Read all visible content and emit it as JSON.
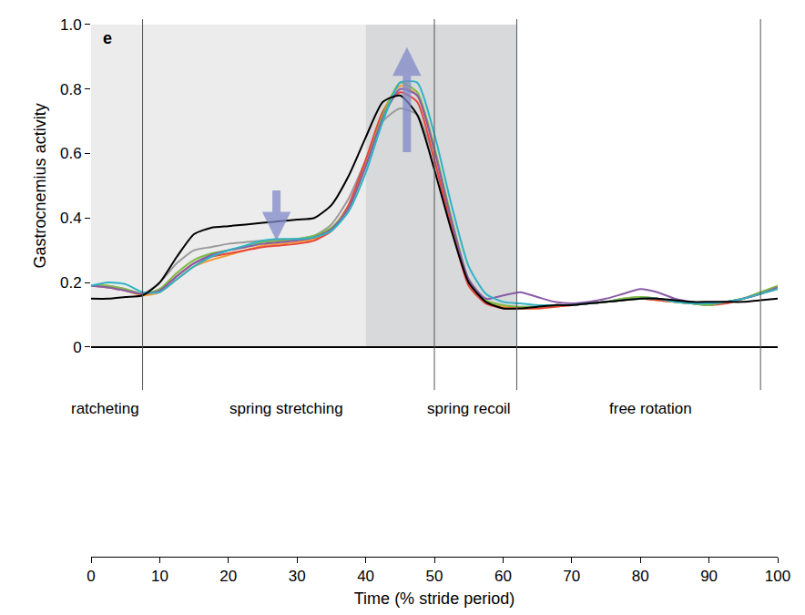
{
  "chart_data": {
    "type": "line",
    "panel_label": "e",
    "xlabel": "Time (% stride period)",
    "ylabel": "Gastrocnemius activity",
    "x": [
      0,
      2.5,
      5,
      7.5,
      10,
      12.5,
      15,
      17.5,
      20,
      22.5,
      25,
      27.5,
      30,
      32.5,
      35,
      37.5,
      40,
      42.5,
      45,
      47.5,
      50,
      52.5,
      55,
      57.5,
      60,
      62.5,
      65,
      67.5,
      70,
      72.5,
      75,
      77.5,
      80,
      82.5,
      85,
      87.5,
      90,
      92.5,
      95,
      97.5,
      100
    ],
    "series": [
      {
        "color": "#9a9a9a",
        "values": [
          0.19,
          0.19,
          0.18,
          0.165,
          0.2,
          0.26,
          0.3,
          0.31,
          0.32,
          0.325,
          0.33,
          0.33,
          0.335,
          0.345,
          0.38,
          0.46,
          0.58,
          0.7,
          0.74,
          0.72,
          0.58,
          0.37,
          0.2,
          0.14,
          0.125,
          0.125,
          0.125,
          0.13,
          0.13,
          0.135,
          0.14,
          0.15,
          0.155,
          0.15,
          0.14,
          0.135,
          0.13,
          0.14,
          0.15,
          0.17,
          0.185
        ]
      },
      {
        "color": "#f39c35",
        "values": [
          0.19,
          0.19,
          0.175,
          0.16,
          0.17,
          0.21,
          0.25,
          0.27,
          0.285,
          0.3,
          0.315,
          0.32,
          0.325,
          0.335,
          0.365,
          0.44,
          0.57,
          0.73,
          0.81,
          0.78,
          0.61,
          0.39,
          0.2,
          0.14,
          0.125,
          0.12,
          0.12,
          0.125,
          0.13,
          0.135,
          0.14,
          0.145,
          0.15,
          0.145,
          0.14,
          0.135,
          0.135,
          0.14,
          0.15,
          0.165,
          0.18
        ]
      },
      {
        "color": "#e8463a",
        "values": [
          0.19,
          0.185,
          0.175,
          0.165,
          0.175,
          0.22,
          0.26,
          0.28,
          0.29,
          0.3,
          0.31,
          0.315,
          0.32,
          0.33,
          0.36,
          0.44,
          0.58,
          0.73,
          0.79,
          0.76,
          0.58,
          0.37,
          0.19,
          0.135,
          0.12,
          0.12,
          0.12,
          0.125,
          0.13,
          0.135,
          0.14,
          0.145,
          0.15,
          0.145,
          0.14,
          0.135,
          0.13,
          0.135,
          0.15,
          0.165,
          0.185
        ]
      },
      {
        "color": "#7dbb42",
        "values": [
          0.19,
          0.19,
          0.18,
          0.165,
          0.18,
          0.23,
          0.27,
          0.29,
          0.3,
          0.31,
          0.325,
          0.33,
          0.335,
          0.345,
          0.37,
          0.43,
          0.56,
          0.72,
          0.82,
          0.79,
          0.62,
          0.4,
          0.21,
          0.145,
          0.13,
          0.125,
          0.125,
          0.13,
          0.13,
          0.135,
          0.14,
          0.15,
          0.155,
          0.15,
          0.14,
          0.135,
          0.13,
          0.14,
          0.15,
          0.17,
          0.19
        ]
      },
      {
        "color": "#8a5ca8",
        "values": [
          0.19,
          0.185,
          0.175,
          0.165,
          0.175,
          0.22,
          0.26,
          0.285,
          0.3,
          0.31,
          0.32,
          0.325,
          0.33,
          0.34,
          0.365,
          0.43,
          0.56,
          0.71,
          0.8,
          0.78,
          0.61,
          0.39,
          0.21,
          0.15,
          0.16,
          0.17,
          0.155,
          0.14,
          0.135,
          0.14,
          0.15,
          0.165,
          0.18,
          0.17,
          0.15,
          0.14,
          0.135,
          0.14,
          0.15,
          0.165,
          0.185
        ]
      },
      {
        "color": "#2fb3c6",
        "values": [
          0.19,
          0.2,
          0.195,
          0.17,
          0.17,
          0.21,
          0.25,
          0.28,
          0.3,
          0.315,
          0.33,
          0.335,
          0.335,
          0.34,
          0.36,
          0.42,
          0.54,
          0.7,
          0.82,
          0.82,
          0.66,
          0.44,
          0.25,
          0.165,
          0.14,
          0.135,
          0.13,
          0.13,
          0.13,
          0.135,
          0.14,
          0.145,
          0.15,
          0.15,
          0.14,
          0.135,
          0.135,
          0.14,
          0.15,
          0.165,
          0.18
        ]
      },
      {
        "color": "#000000",
        "values": [
          0.15,
          0.15,
          0.155,
          0.16,
          0.2,
          0.28,
          0.35,
          0.37,
          0.375,
          0.38,
          0.385,
          0.39,
          0.395,
          0.4,
          0.44,
          0.53,
          0.65,
          0.76,
          0.78,
          0.72,
          0.55,
          0.36,
          0.2,
          0.14,
          0.12,
          0.12,
          0.125,
          0.13,
          0.13,
          0.135,
          0.14,
          0.145,
          0.15,
          0.15,
          0.145,
          0.14,
          0.14,
          0.14,
          0.14,
          0.145,
          0.15
        ]
      }
    ],
    "xlim": [
      0,
      100
    ],
    "xticks": [
      0,
      10,
      20,
      30,
      40,
      50,
      60,
      70,
      80,
      90,
      100
    ],
    "ylim": [
      0,
      1
    ],
    "yticks": [
      0,
      0.2,
      0.4,
      0.6,
      0.8,
      {
        "value": 1,
        "label": "1.0"
      }
    ],
    "shaded_regions": [
      {
        "start": 0,
        "end": 40,
        "color": "#ececec"
      },
      {
        "start": 40,
        "end": 62,
        "color": "#d8d9db"
      }
    ],
    "phase_boundaries": [
      7.5,
      50,
      62,
      97.5
    ],
    "phase_labels": [
      {
        "text": "ratcheting",
        "x": 2
      },
      {
        "text": "spring stretching",
        "x": 28.5
      },
      {
        "text": "spring recoil",
        "x": 55
      },
      {
        "text": "free rotation",
        "x": 81.5
      }
    ],
    "arrows": [
      {
        "x": 27,
        "from": 0.49,
        "to": 0.33
      },
      {
        "x": 46,
        "from": 0.6,
        "to": 0.93
      }
    ],
    "grid": false
  }
}
